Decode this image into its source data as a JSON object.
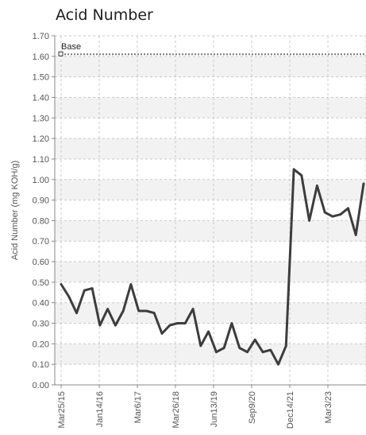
{
  "chart_data": {
    "type": "line",
    "title": "Acid Number",
    "xlabel": "",
    "ylabel": "Acid Number (mg KOH/g)",
    "ylim": [
      0,
      1.7
    ],
    "y_ticks": [
      "0.00",
      "0.10",
      "0.20",
      "0.30",
      "0.40",
      "0.50",
      "0.60",
      "0.70",
      "0.80",
      "0.90",
      "1.00",
      "1.10",
      "1.20",
      "1.30",
      "1.40",
      "1.50",
      "1.60",
      "1.70"
    ],
    "x_tick_labels": [
      "Mar25/15",
      "Jan14/16",
      "Mar6/17",
      "Mar26/18",
      "Jun13/19",
      "Sep9/20",
      "Dec14/21",
      "Mar3/23"
    ],
    "grid": true,
    "reference_line": {
      "name": "Base",
      "value": 1.61
    },
    "series": [
      {
        "values": [
          0.49,
          0.43,
          0.35,
          0.46,
          0.47,
          0.29,
          0.37,
          0.29,
          0.36,
          0.49,
          0.36,
          0.36,
          0.35,
          0.25,
          0.29,
          0.3,
          0.3,
          0.37,
          0.19,
          0.26,
          0.16,
          0.18,
          0.3,
          0.18,
          0.16,
          0.22,
          0.16,
          0.17,
          0.1,
          0.19,
          1.05,
          1.02,
          0.8,
          0.97,
          0.84,
          0.82,
          0.83,
          0.86,
          0.73,
          0.98
        ]
      }
    ],
    "colors": {
      "line": "#3d3d3d",
      "reference": "#777777",
      "grid": "#c9c9c9",
      "band": "#f2f2f2"
    }
  }
}
